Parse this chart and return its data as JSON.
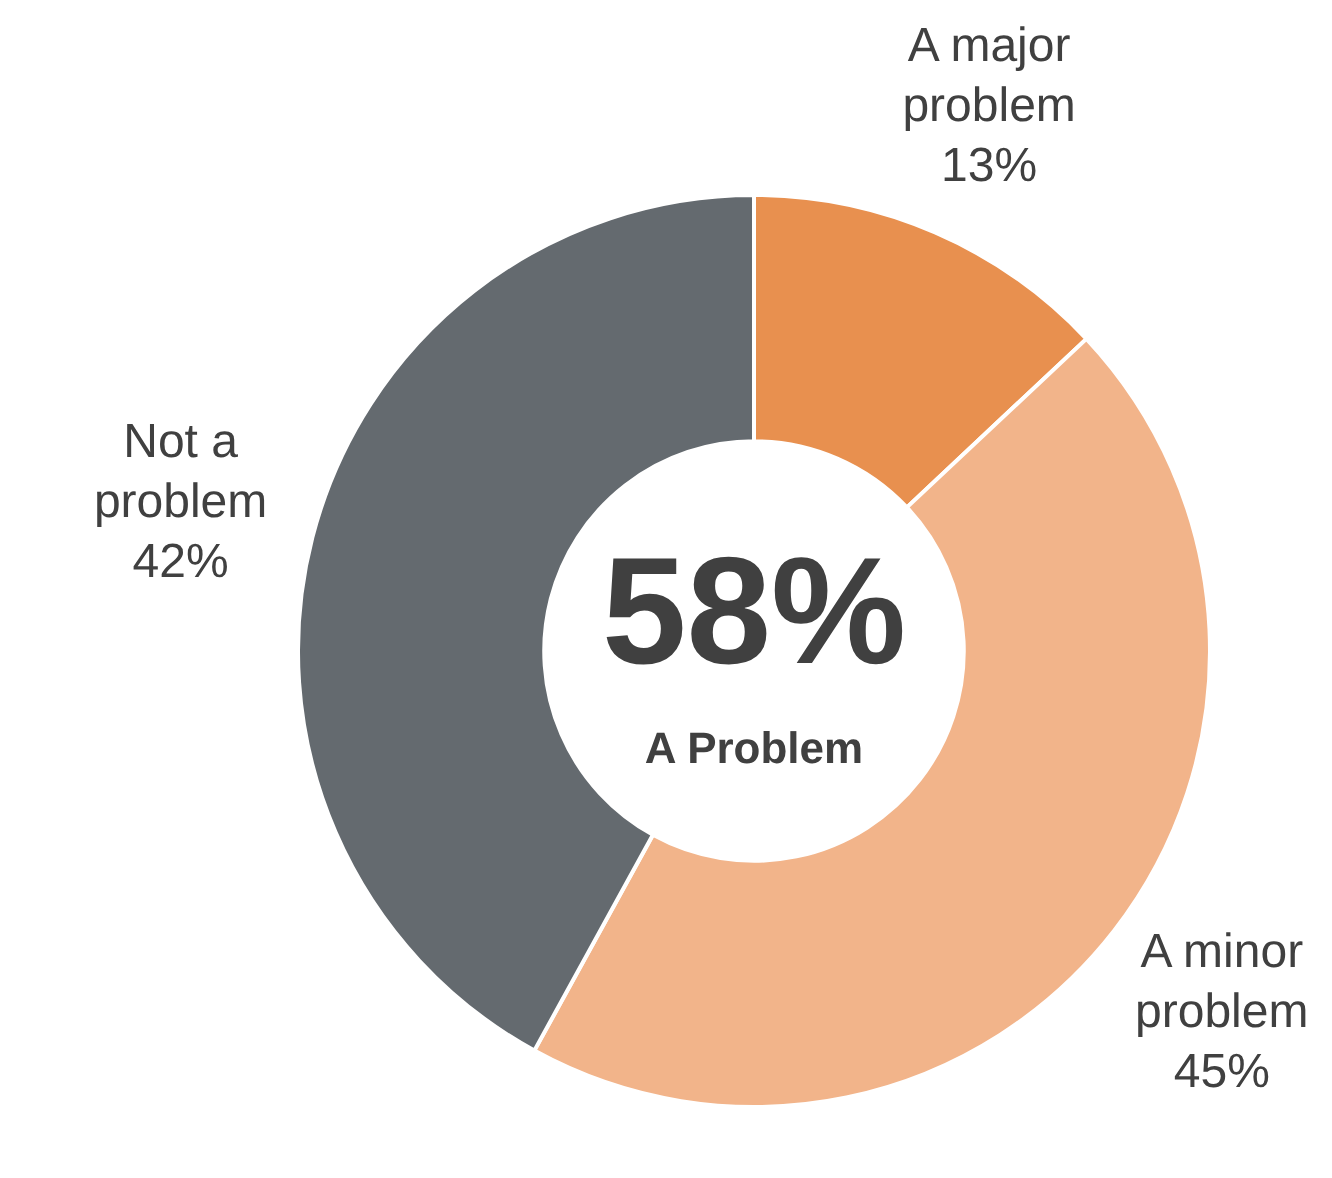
{
  "chart_data": {
    "type": "donut",
    "categories": [
      "A major problem",
      "A minor problem",
      "Not a problem"
    ],
    "values": [
      13,
      45,
      42
    ],
    "colors": [
      "#e8904f",
      "#f2b48a",
      "#646a6f"
    ],
    "value_labels": [
      "13%",
      "45%",
      "42%"
    ],
    "legend": false,
    "annotations": [
      "58%",
      "A Problem"
    ]
  }
}
